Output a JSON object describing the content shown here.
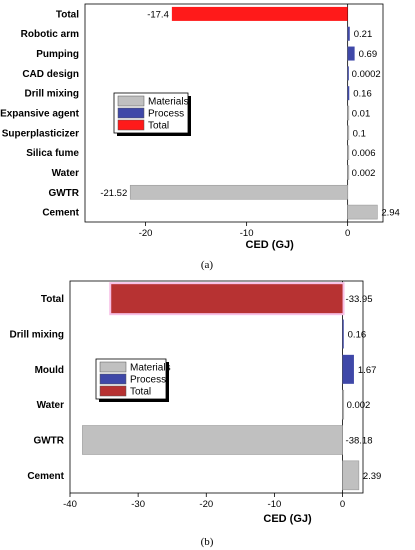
{
  "chart_data": [
    {
      "type": "bar",
      "orientation": "horizontal",
      "caption": "(a)",
      "xlabel": "CED (GJ)",
      "xlim": [
        -26,
        3.5
      ],
      "xticks": [
        -20,
        -10,
        0
      ],
      "legend_position": "center-left",
      "legend": [
        {
          "name": "Materials",
          "color": "#c0c0c0"
        },
        {
          "name": "Process",
          "color": "#3f48a8"
        },
        {
          "name": "Total",
          "color": "#ff1a1a"
        }
      ],
      "categories": [
        "Total",
        "Robotic arm",
        "Pumping",
        "CAD design",
        "Drill mixing",
        "Expansive agent",
        "Superplasticizer",
        "Silica fume",
        "Water",
        "GWTR",
        "Cement"
      ],
      "values": [
        -17.4,
        0.21,
        0.69,
        0.0002,
        0.16,
        0.01,
        0.1,
        0.006,
        0.002,
        -21.52,
        2.94
      ],
      "labels": [
        "-17.4",
        "0.21",
        "0.69",
        "0.0002",
        "0.16",
        "0.01",
        "0.1",
        "0.006",
        "0.002",
        "-21.52",
        "2.94"
      ],
      "groups": [
        "Total",
        "Process",
        "Process",
        "Process",
        "Process",
        "Materials",
        "Materials",
        "Materials",
        "Materials",
        "Materials",
        "Materials"
      ]
    },
    {
      "type": "bar",
      "orientation": "horizontal",
      "caption": "(b)",
      "xlabel": "CED (GJ)",
      "xlim": [
        -40,
        3
      ],
      "xticks": [
        -40,
        -30,
        -20,
        -10,
        0
      ],
      "legend_position": "center-left",
      "legend": [
        {
          "name": "Materials",
          "color": "#c0c0c0"
        },
        {
          "name": "Process",
          "color": "#3f48a8"
        },
        {
          "name": "Total",
          "color": "#b73232"
        }
      ],
      "categories": [
        "Total",
        "Drill mixing",
        "Mould",
        "Water",
        "GWTR",
        "Cement"
      ],
      "values": [
        -33.95,
        0.16,
        1.67,
        0.002,
        -38.18,
        2.39
      ],
      "labels": [
        "-33.95",
        "0.16",
        "1.67",
        "0.002",
        "-38.18",
        "2.39"
      ],
      "groups": [
        "Total",
        "Process",
        "Process",
        "Materials",
        "Materials",
        "Materials"
      ]
    }
  ]
}
